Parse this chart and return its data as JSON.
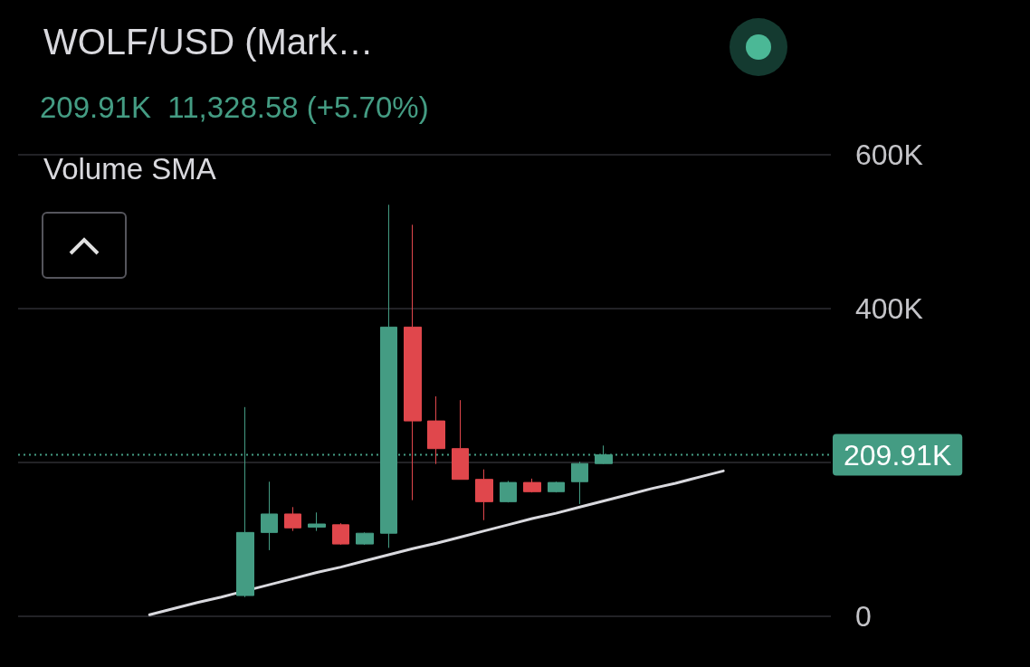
{
  "chart_data": {
    "type": "candlestick",
    "title": "WOLF/USD (Mark…",
    "subtitle": "209.91K  11,328.58 (+5.70%)",
    "annotations": [
      "Volume SMA"
    ],
    "categories": [
      null,
      null,
      null,
      null,
      null,
      null,
      null,
      null,
      null,
      null,
      null,
      null,
      null,
      null,
      null,
      null,
      null,
      null,
      null,
      null,
      null,
      null,
      null,
      null,
      null,
      null,
      null,
      null,
      null,
      null,
      null,
      null,
      null,
      null
    ],
    "ohlc": [
      null,
      null,
      null,
      null,
      null,
      null,
      null,
      null,
      null,
      [
        27,
        272,
        25,
        109
      ],
      [
        109,
        175,
        86,
        133
      ],
      [
        133,
        142,
        111,
        115
      ],
      [
        116,
        135,
        111,
        120
      ],
      [
        119,
        121,
        93,
        94
      ],
      [
        94,
        109,
        93,
        108
      ],
      [
        108,
        535,
        89,
        376
      ],
      [
        376,
        509,
        151,
        254
      ],
      [
        254,
        286,
        198,
        218
      ],
      [
        218,
        281,
        178,
        178
      ],
      [
        178,
        191,
        125,
        149
      ],
      [
        149,
        176,
        148,
        174
      ],
      [
        174,
        179,
        161,
        162
      ],
      [
        162,
        175,
        161,
        174
      ],
      [
        175,
        201,
        146,
        198.58
      ],
      [
        198.58,
        222,
        198,
        209.91
      ],
      null,
      null,
      null,
      null,
      null,
      null,
      null,
      null,
      null
    ],
    "series": [
      {
        "type": "line",
        "color": "#d9d9de",
        "values": [
          null,
          null,
          null,
          null,
          null,
          2,
          10,
          18,
          25,
          null,
          41,
          49,
          57,
          64,
          72,
          80,
          88,
          95,
          103,
          111,
          119,
          127,
          134,
          142,
          150,
          158,
          166,
          173,
          181,
          189,
          null,
          null,
          null,
          null
        ]
      }
    ],
    "ylim": [
      0,
      600
    ],
    "yticks": [
      {
        "value": 0,
        "label": "0"
      },
      {
        "value": 200,
        "label": null
      },
      {
        "value": 400,
        "label": "400K"
      },
      {
        "value": 600,
        "label": "600K"
      }
    ],
    "ref_lines": [
      {
        "axis": "y",
        "value": 209.91,
        "label": "209.91K",
        "color": "#449c83",
        "line_style": "dotted"
      }
    ],
    "grid": "y",
    "tick_labels": "y"
  }
}
